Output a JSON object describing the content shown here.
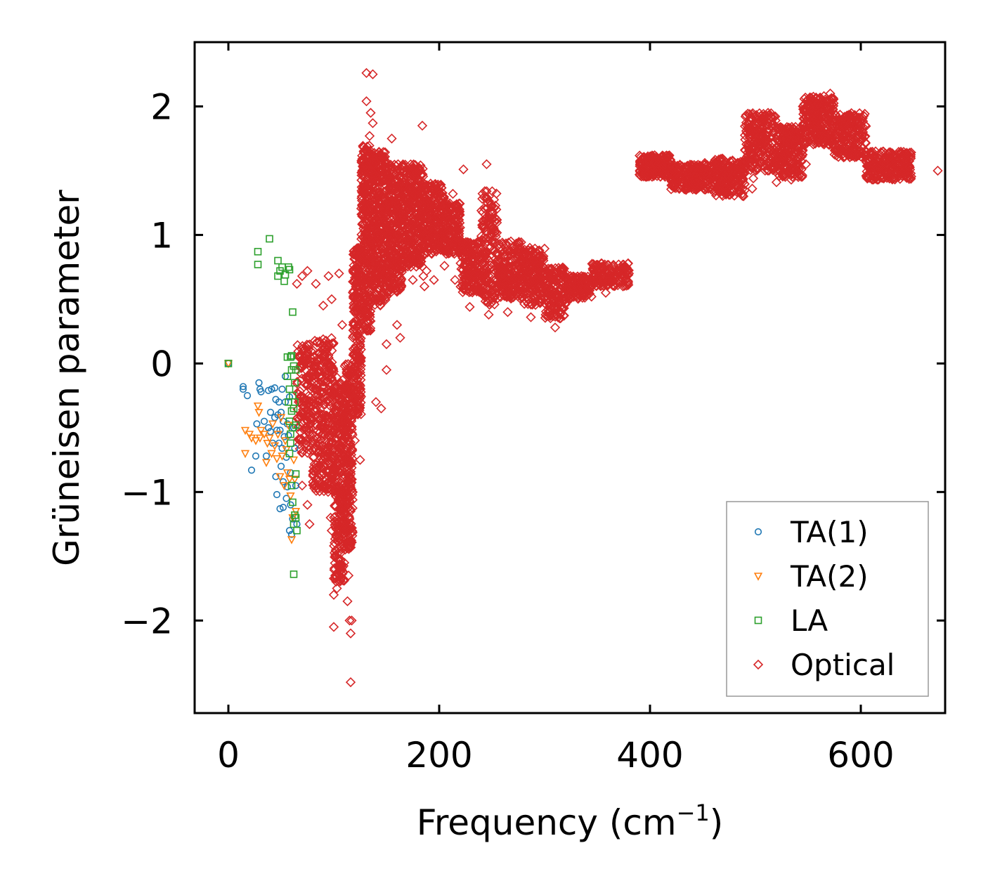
{
  "chart_data": {
    "type": "scatter",
    "title": "",
    "xlabel": "Frequency (cm",
    "xlabel_sup": "−1",
    "xlabel_suffix": ")",
    "ylabel": "Grüneisen parameter",
    "xlim": [
      -32,
      680
    ],
    "ylim": [
      -2.72,
      2.5
    ],
    "xticks": [
      0,
      200,
      400,
      600
    ],
    "xtick_labels": [
      "0",
      "200",
      "400",
      "600"
    ],
    "yticks": [
      -2,
      -1,
      0,
      1,
      2
    ],
    "ytick_labels": [
      "−2",
      "−1",
      "0",
      "1",
      "2"
    ],
    "grid": false,
    "legend_position": "lower-right",
    "series": [
      {
        "name": "TA(1)",
        "marker": "circle",
        "color": "#1f77b4",
        "points": [
          [
            0,
            0
          ],
          [
            14,
            -0.18
          ],
          [
            14,
            -0.2
          ],
          [
            18,
            -0.25
          ],
          [
            22,
            -0.83
          ],
          [
            26,
            -0.72
          ],
          [
            27,
            -0.47
          ],
          [
            29,
            -0.15
          ],
          [
            30,
            -0.2
          ],
          [
            31,
            -0.22
          ],
          [
            34,
            -0.45
          ],
          [
            36,
            -0.72
          ],
          [
            38,
            -0.21
          ],
          [
            38,
            -0.5
          ],
          [
            40,
            -0.38
          ],
          [
            40,
            -0.53
          ],
          [
            41,
            -0.2
          ],
          [
            42,
            -0.62
          ],
          [
            44,
            -0.19
          ],
          [
            44,
            -0.42
          ],
          [
            45,
            -0.88
          ],
          [
            45,
            -0.28
          ],
          [
            46,
            -0.52
          ],
          [
            46,
            -1.02
          ],
          [
            47,
            -0.4
          ],
          [
            48,
            -0.62
          ],
          [
            48,
            -0.3
          ],
          [
            49,
            -1.13
          ],
          [
            49,
            -0.52
          ],
          [
            50,
            -0.38
          ],
          [
            50,
            -0.8
          ],
          [
            51,
            -0.2
          ],
          [
            51,
            -0.66
          ],
          [
            52,
            -1.12
          ],
          [
            52,
            -0.45
          ],
          [
            52,
            -0.92
          ],
          [
            53,
            -0.57
          ],
          [
            54,
            -0.1
          ],
          [
            54,
            -0.3
          ],
          [
            55,
            -0.73
          ],
          [
            55,
            -1.05
          ],
          [
            56,
            -0.47
          ],
          [
            56,
            -0.96
          ],
          [
            57,
            -0.56
          ],
          [
            58,
            -1.3
          ],
          [
            58,
            -0.26
          ],
          [
            59,
            -0.85
          ],
          [
            59,
            -1.1
          ],
          [
            60,
            -1.33
          ],
          [
            61,
            -1.21
          ],
          [
            62,
            -0.5
          ],
          [
            63,
            -0.66
          ],
          [
            64,
            -0.95
          ],
          [
            65,
            -1.25
          ]
        ]
      },
      {
        "name": "TA(2)",
        "marker": "triangle",
        "color": "#ff7f0e",
        "points": [
          [
            0,
            0
          ],
          [
            16,
            -0.52
          ],
          [
            16,
            -0.7
          ],
          [
            20,
            -0.55
          ],
          [
            22,
            -0.58
          ],
          [
            26,
            -0.6
          ],
          [
            28,
            -0.33
          ],
          [
            29,
            -0.38
          ],
          [
            30,
            -0.58
          ],
          [
            31,
            -0.52
          ],
          [
            34,
            -0.55
          ],
          [
            36,
            -0.77
          ],
          [
            37,
            -0.62
          ],
          [
            39,
            -0.58
          ],
          [
            41,
            -0.7
          ],
          [
            42,
            -0.47
          ],
          [
            44,
            -0.64
          ],
          [
            46,
            -0.74
          ],
          [
            47,
            -0.55
          ],
          [
            49,
            -0.88
          ],
          [
            50,
            -0.42
          ],
          [
            51,
            -0.72
          ],
          [
            53,
            -0.95
          ],
          [
            54,
            -0.6
          ],
          [
            55,
            -0.67
          ],
          [
            56,
            -0.85
          ],
          [
            57,
            -0.48
          ],
          [
            58,
            -0.9
          ],
          [
            59,
            -1.03
          ],
          [
            60,
            -1.37
          ],
          [
            61,
            -1.2
          ],
          [
            62,
            -0.75
          ],
          [
            63,
            -0.9
          ],
          [
            64,
            -1.15
          ]
        ]
      },
      {
        "name": "LA",
        "marker": "square",
        "color": "#2ca02c",
        "points": [
          [
            0,
            0
          ],
          [
            28,
            0.87
          ],
          [
            28,
            0.77
          ],
          [
            39,
            0.97
          ],
          [
            47,
            0.8
          ],
          [
            47,
            0.68
          ],
          [
            49,
            0.72
          ],
          [
            51,
            0.75
          ],
          [
            53,
            0.64
          ],
          [
            54,
            0.69
          ],
          [
            56,
            0.05
          ],
          [
            57,
            0.75
          ],
          [
            58,
            0.73
          ],
          [
            59,
            0.05
          ],
          [
            60,
            0.06
          ],
          [
            61,
            0.4
          ],
          [
            56,
            -0.1
          ],
          [
            57,
            -0.3
          ],
          [
            58,
            -0.2
          ],
          [
            58,
            -0.45
          ],
          [
            59,
            -0.55
          ],
          [
            60,
            -0.37
          ],
          [
            60,
            -0.05
          ],
          [
            61,
            -0.25
          ],
          [
            61,
            -0.5
          ],
          [
            62,
            -0.02
          ],
          [
            62,
            -0.35
          ],
          [
            63,
            -0.15
          ],
          [
            63,
            -0.3
          ],
          [
            64,
            -0.48
          ],
          [
            64,
            -0.05
          ],
          [
            60,
            -0.95
          ],
          [
            61,
            -1.08
          ],
          [
            62,
            -1.25
          ],
          [
            63,
            -1.18
          ],
          [
            64,
            -1.2
          ],
          [
            65,
            -1.3
          ],
          [
            64,
            -0.86
          ],
          [
            62,
            -1.64
          ],
          [
            58,
            -0.7
          ],
          [
            59,
            -0.62
          ]
        ]
      },
      {
        "name": "Optical",
        "marker": "diamond",
        "color": "#d62728",
        "bands": [
          {
            "x0": 65,
            "x1": 80,
            "ylo": -0.7,
            "yhi": 0.15,
            "n": 150
          },
          {
            "x0": 80,
            "x1": 100,
            "ylo": -1.0,
            "yhi": 0.2,
            "n": 330
          },
          {
            "x0": 100,
            "x1": 110,
            "ylo": -1.7,
            "yhi": -0.1,
            "n": 280
          },
          {
            "x0": 110,
            "x1": 118,
            "ylo": -1.45,
            "yhi": 0.0,
            "n": 250
          },
          {
            "x0": 118,
            "x1": 126,
            "ylo": -0.4,
            "yhi": 0.9,
            "n": 240
          },
          {
            "x0": 126,
            "x1": 135,
            "ylo": 0.25,
            "yhi": 1.7,
            "n": 300
          },
          {
            "x0": 135,
            "x1": 150,
            "ylo": 0.45,
            "yhi": 1.65,
            "n": 380
          },
          {
            "x0": 150,
            "x1": 165,
            "ylo": 0.55,
            "yhi": 1.55,
            "n": 320
          },
          {
            "x0": 165,
            "x1": 185,
            "ylo": 0.75,
            "yhi": 1.55,
            "n": 360
          },
          {
            "x0": 185,
            "x1": 205,
            "ylo": 0.85,
            "yhi": 1.4,
            "n": 260
          },
          {
            "x0": 205,
            "x1": 220,
            "ylo": 0.85,
            "yhi": 1.25,
            "n": 150
          },
          {
            "x0": 220,
            "x1": 240,
            "ylo": 0.55,
            "yhi": 0.95,
            "n": 180
          },
          {
            "x0": 240,
            "x1": 255,
            "ylo": 0.45,
            "yhi": 1.35,
            "n": 170
          },
          {
            "x0": 255,
            "x1": 280,
            "ylo": 0.5,
            "yhi": 0.95,
            "n": 230
          },
          {
            "x0": 280,
            "x1": 300,
            "ylo": 0.45,
            "yhi": 0.9,
            "n": 190
          },
          {
            "x0": 300,
            "x1": 320,
            "ylo": 0.35,
            "yhi": 0.75,
            "n": 160
          },
          {
            "x0": 320,
            "x1": 345,
            "ylo": 0.5,
            "yhi": 0.68,
            "n": 150
          },
          {
            "x0": 345,
            "x1": 380,
            "ylo": 0.6,
            "yhi": 0.78,
            "n": 150
          },
          {
            "x0": 390,
            "x1": 420,
            "ylo": 1.45,
            "yhi": 1.62,
            "n": 210
          },
          {
            "x0": 420,
            "x1": 460,
            "ylo": 1.35,
            "yhi": 1.55,
            "n": 260
          },
          {
            "x0": 460,
            "x1": 490,
            "ylo": 1.3,
            "yhi": 1.6,
            "n": 220
          },
          {
            "x0": 490,
            "x1": 520,
            "ylo": 1.5,
            "yhi": 1.95,
            "n": 260
          },
          {
            "x0": 520,
            "x1": 545,
            "ylo": 1.45,
            "yhi": 1.85,
            "n": 220
          },
          {
            "x0": 545,
            "x1": 575,
            "ylo": 1.7,
            "yhi": 2.08,
            "n": 260
          },
          {
            "x0": 575,
            "x1": 605,
            "ylo": 1.6,
            "yhi": 1.95,
            "n": 220
          },
          {
            "x0": 605,
            "x1": 648,
            "ylo": 1.43,
            "yhi": 1.65,
            "n": 260
          }
        ],
        "points": [
          [
            131,
            2.26
          ],
          [
            137,
            2.25
          ],
          [
            131,
            2.04
          ],
          [
            135,
            1.95
          ],
          [
            137,
            1.87
          ],
          [
            184,
            1.85
          ],
          [
            134,
            1.77
          ],
          [
            155,
            1.75
          ],
          [
            223,
            1.51
          ],
          [
            245,
            1.55
          ],
          [
            213,
            1.32
          ],
          [
            243,
            1.05
          ],
          [
            203,
            0.95
          ],
          [
            195,
            0.65
          ],
          [
            185,
            0.68
          ],
          [
            186,
            0.6
          ],
          [
            205,
            0.76
          ],
          [
            175,
            0.65
          ],
          [
            188,
            0.72
          ],
          [
            157,
            0.76
          ],
          [
            160,
            0.3
          ],
          [
            163,
            0.2
          ],
          [
            150,
            0.52
          ],
          [
            150,
            0.15
          ],
          [
            140,
            -0.3
          ],
          [
            145,
            -0.35
          ],
          [
            150,
            -0.05
          ],
          [
            120,
            -0.6
          ],
          [
            125,
            -0.75
          ],
          [
            117,
            -0.9
          ],
          [
            65,
            0.62
          ],
          [
            70,
            0.68
          ],
          [
            75,
            0.72
          ],
          [
            83,
            0.62
          ],
          [
            95,
            0.68
          ],
          [
            105,
            0.7
          ],
          [
            90,
            0.45
          ],
          [
            98,
            0.5
          ],
          [
            108,
            0.3
          ],
          [
            94,
            0.0
          ],
          [
            80,
            -0.6
          ],
          [
            70,
            -0.95
          ],
          [
            75,
            -1.1
          ],
          [
            77,
            -1.25
          ],
          [
            90,
            -0.82
          ],
          [
            88,
            -0.7
          ],
          [
            100,
            -1.8
          ],
          [
            103,
            -1.75
          ],
          [
            110,
            -1.55
          ],
          [
            113,
            -1.85
          ],
          [
            114,
            -1.65
          ],
          [
            118,
            -1.0
          ],
          [
            115,
            -2.0
          ],
          [
            117,
            -2.0
          ],
          [
            116,
            -2.1
          ],
          [
            100,
            -2.05
          ],
          [
            116,
            -2.48
          ],
          [
            98,
            -1.3
          ],
          [
            97,
            -1.2
          ],
          [
            380,
            0.7
          ],
          [
            358,
            0.55
          ],
          [
            310,
            0.28
          ],
          [
            287,
            0.36
          ],
          [
            265,
            0.4
          ],
          [
            247,
            0.38
          ],
          [
            229,
            0.44
          ],
          [
            268,
            0.95
          ],
          [
            277,
            0.9
          ],
          [
            295,
            0.88
          ],
          [
            226,
            0.87
          ],
          [
            215,
            0.65
          ],
          [
            237,
            0.75
          ],
          [
            416,
            1.59
          ],
          [
            446,
            1.5
          ],
          [
            449,
            1.38
          ],
          [
            467,
            1.53
          ],
          [
            497,
            1.36
          ],
          [
            498,
            1.44
          ],
          [
            520,
            1.41
          ],
          [
            534,
            1.43
          ],
          [
            533,
            1.73
          ],
          [
            548,
            1.55
          ],
          [
            559,
            1.75
          ],
          [
            578,
            1.64
          ],
          [
            673,
            1.5
          ],
          [
            545,
            2.0
          ],
          [
            512,
            1.95
          ],
          [
            565,
            2.08
          ],
          [
            571,
            2.1
          ],
          [
            434,
            1.44
          ],
          [
            452,
            1.56
          ],
          [
            472,
            1.33
          ],
          [
            590,
            1.87
          ]
        ]
      }
    ]
  }
}
